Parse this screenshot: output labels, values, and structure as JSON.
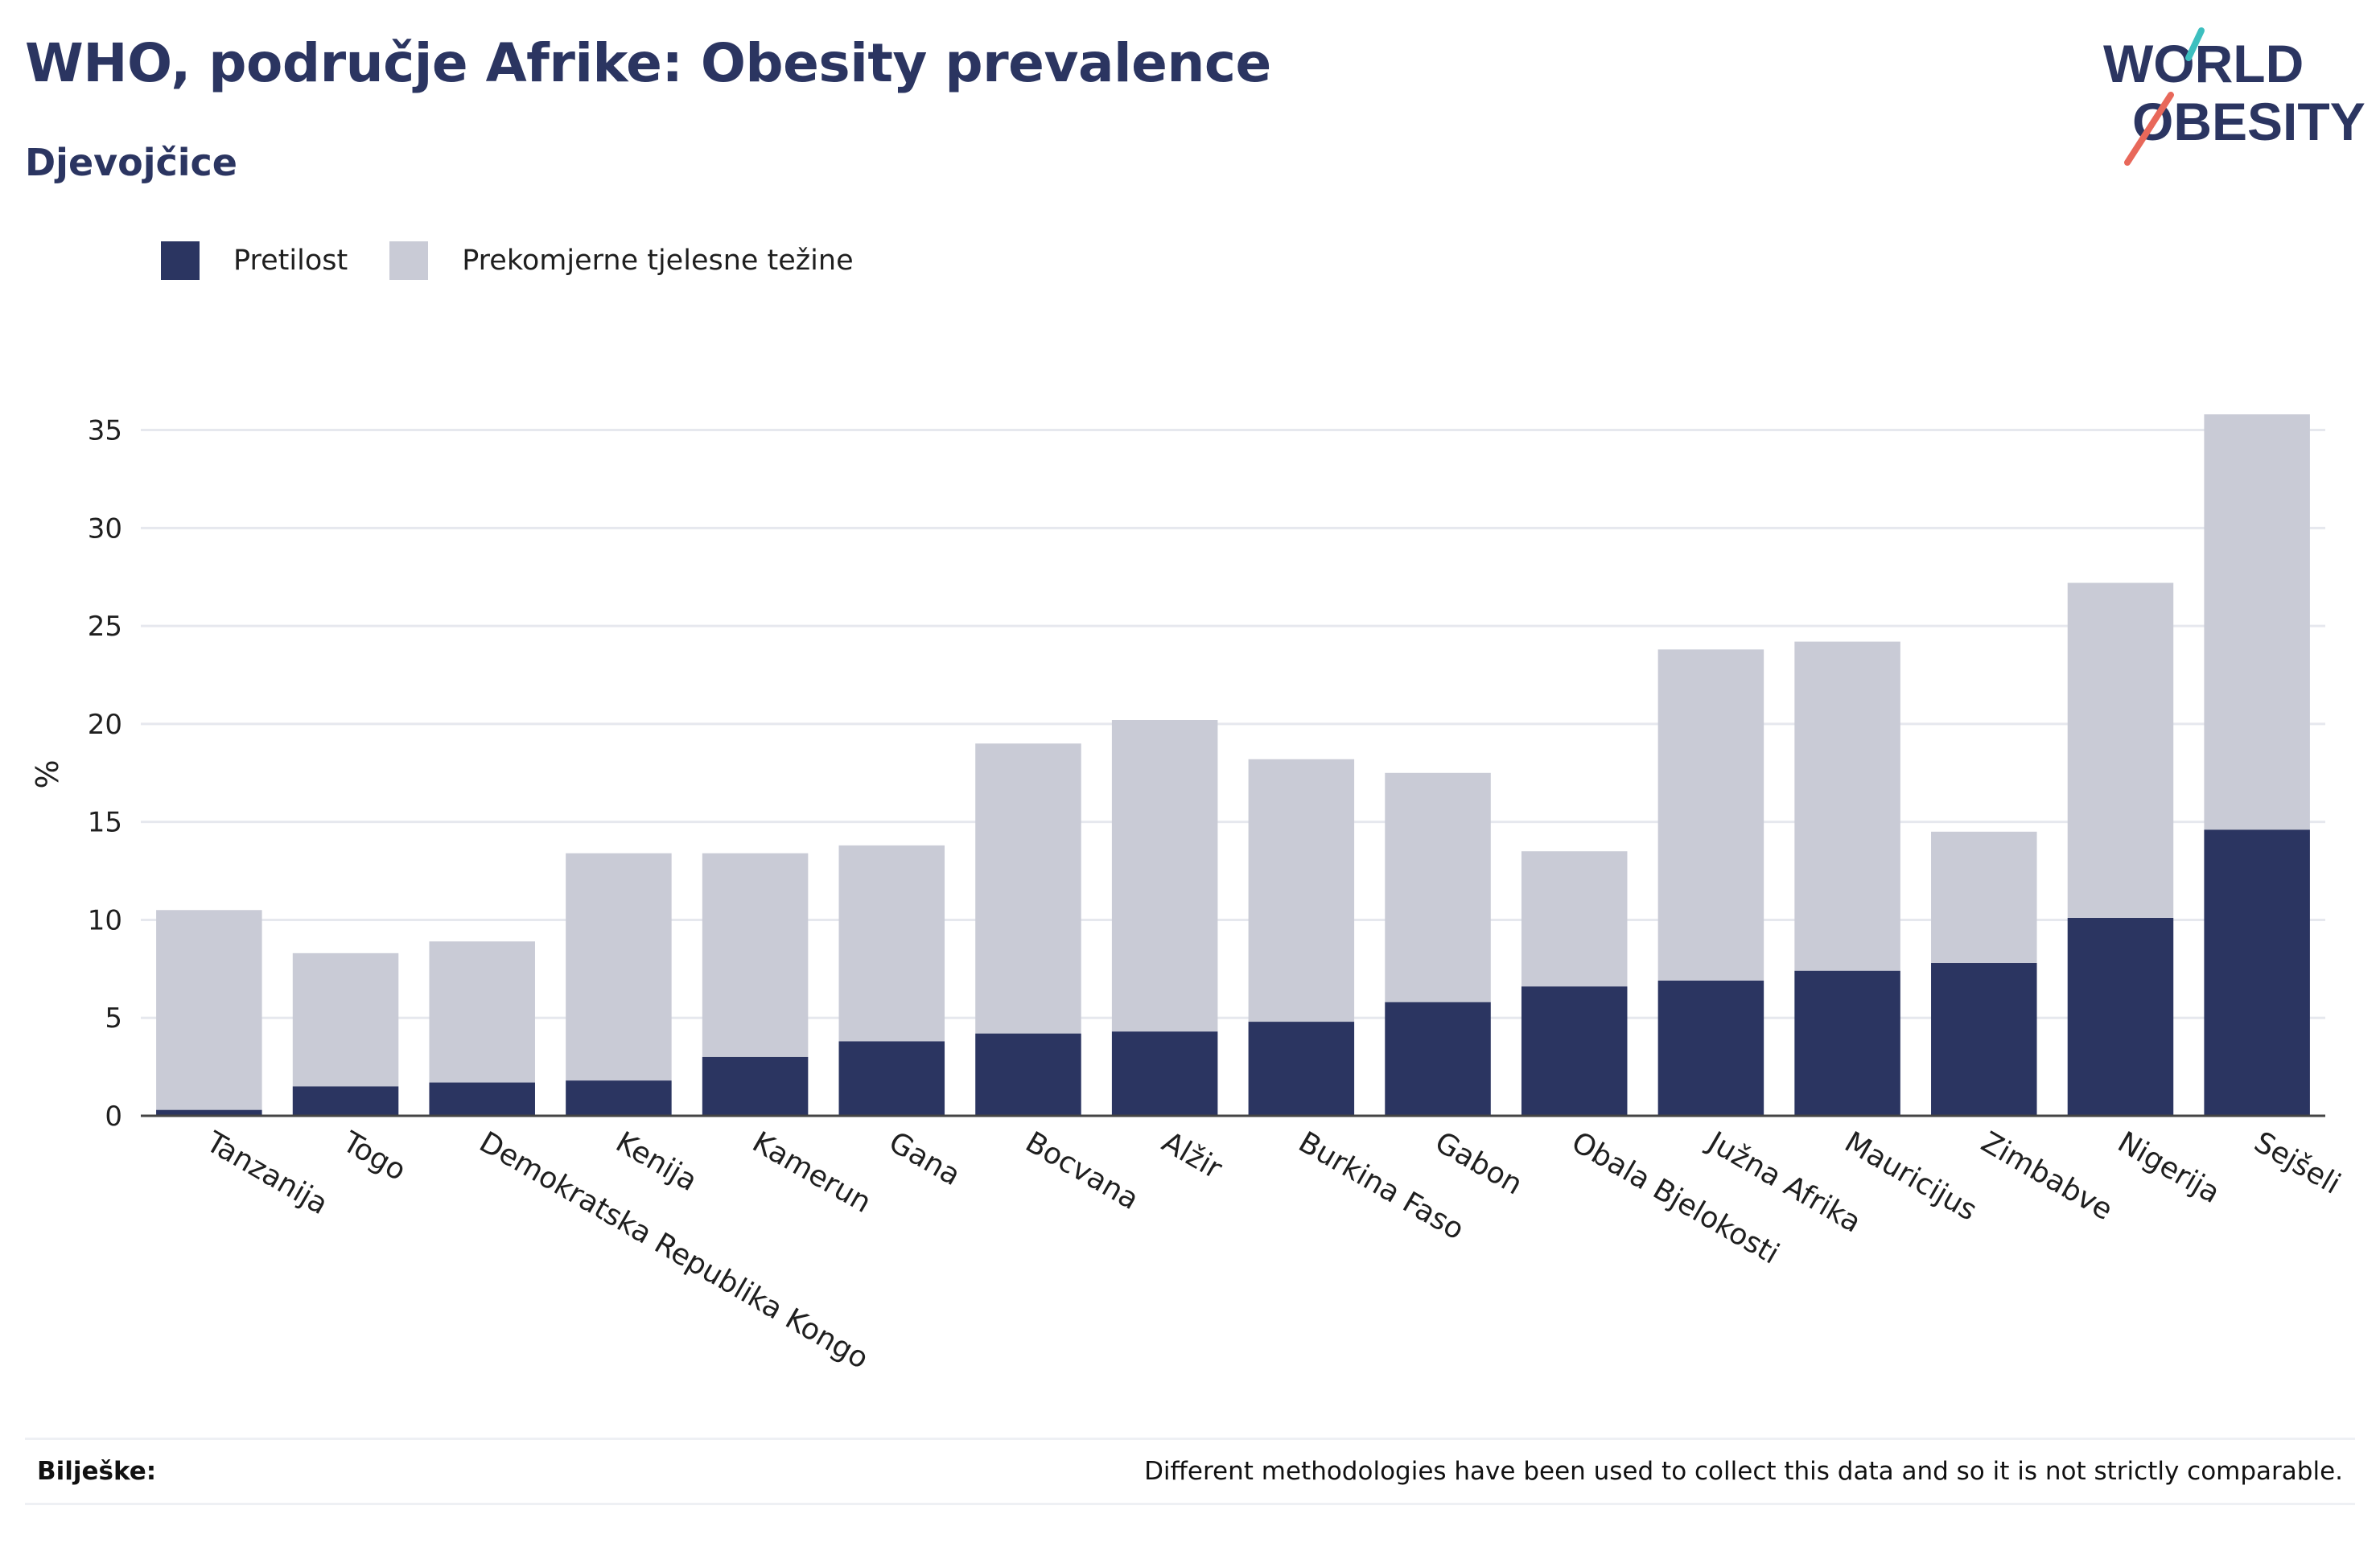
{
  "header": {
    "title": "WHO, područje Afrike: Obesity prevalence",
    "subtitle": "Djevojčice"
  },
  "logo": {
    "line1": "WORLD",
    "line2": "OBESITY"
  },
  "colors": {
    "obesity": "#2b3561",
    "overweight": "#c9cbd6",
    "text": "#1f1f1f",
    "grid": "#e6e8ee",
    "logo_teal": "#3dbfbf",
    "logo_coral": "#e8685a"
  },
  "legend": [
    {
      "label": "Pretilost",
      "color": "#2b3561"
    },
    {
      "label": "Prekomjerne tjelesne težine",
      "color": "#c9cbd6"
    }
  ],
  "chart_data": {
    "type": "bar",
    "stacked": true,
    "categories": [
      "Tanzanija",
      "Togo",
      "Demokratska Republika Kongo",
      "Kenija",
      "Kamerun",
      "Gana",
      "Bocvana",
      "Alžir",
      "Burkina Faso",
      "Gabon",
      "Obala Bjelokosti",
      "Južna Afrika",
      "Mauricijus",
      "Zimbabve",
      "Nigerija",
      "Sejšeli"
    ],
    "series": [
      {
        "name": "Pretilost",
        "values": [
          0.3,
          1.5,
          1.7,
          1.8,
          3.0,
          3.8,
          4.2,
          4.3,
          4.8,
          5.8,
          6.6,
          6.9,
          7.4,
          7.8,
          10.1,
          14.6
        ]
      },
      {
        "name": "Prekomjerne tjelesne težine",
        "values": [
          10.2,
          6.8,
          7.2,
          11.6,
          10.4,
          10.0,
          14.8,
          15.9,
          13.4,
          11.7,
          6.9,
          16.9,
          16.8,
          6.7,
          17.1,
          21.2
        ]
      }
    ],
    "ylabel": "%",
    "xlabel": "",
    "ylim": [
      0,
      36.5
    ],
    "yticks": [
      0,
      5,
      10,
      15,
      20,
      25,
      30,
      35
    ],
    "grid": true,
    "legend_position": "top-left"
  },
  "notes": {
    "label": "Bilješke:",
    "text": "Different methodologies have been used to collect this data and so it is not strictly comparable."
  }
}
